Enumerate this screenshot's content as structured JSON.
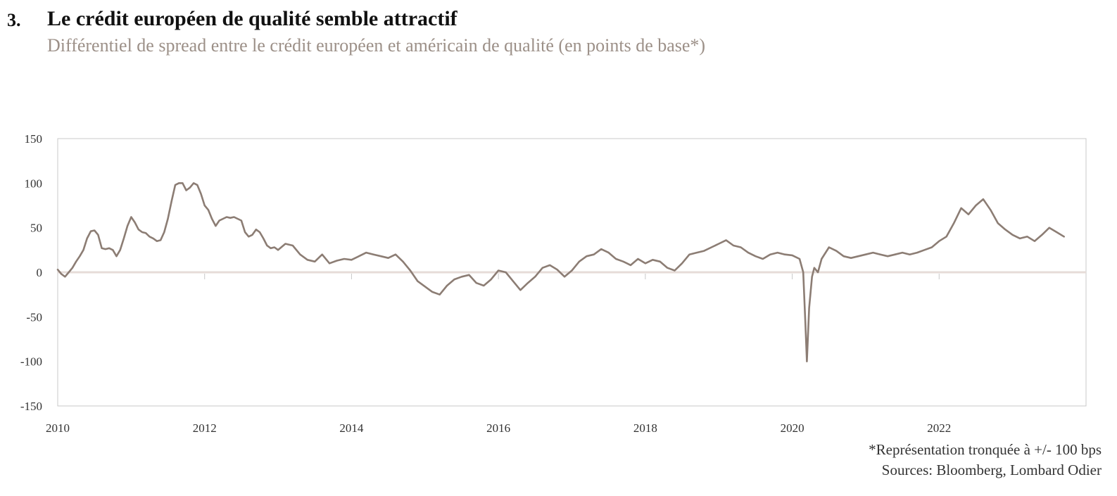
{
  "header": {
    "number": "3.",
    "title": "Le crédit européen de qualité semble attractif",
    "subtitle": "Différentiel de spread entre le crédit européen et américain de qualité (en points de base*)"
  },
  "footer": {
    "note": "*Représentation tronquée à +/- 100 bps",
    "sources": "Sources: Bloomberg, Lombard Odier"
  },
  "colors": {
    "series": "#8c7d74",
    "zero_line": "#e6dcd8",
    "frame": "#c8c8c8",
    "tick": "#c8c8c8"
  },
  "chart_data": {
    "type": "line",
    "title": "Le crédit européen de qualité semble attractif",
    "subtitle": "Différentiel de spread entre le crédit européen et américain de qualité (en points de base*)",
    "xlabel": "",
    "ylabel": "",
    "xlim": [
      2010.0,
      2024.0
    ],
    "ylim": [
      -150,
      150
    ],
    "y_ticks": [
      150,
      100,
      50,
      0,
      -50,
      -100,
      -150
    ],
    "y_tick_labels": [
      "150",
      "100",
      "50",
      "0",
      "-50",
      "-100",
      "-150"
    ],
    "x_ticks": [
      2010,
      2012,
      2014,
      2016,
      2018,
      2020,
      2022
    ],
    "x_tick_labels": [
      "2010",
      "2012",
      "2014",
      "2016",
      "2018",
      "2020",
      "2022"
    ],
    "grid": false,
    "legend": "none",
    "series": [
      {
        "x": [
          2010.0,
          2010.05,
          2010.1,
          2010.15,
          2010.2,
          2010.25,
          2010.3,
          2010.35,
          2010.4,
          2010.45,
          2010.5,
          2010.55,
          2010.6,
          2010.65,
          2010.7,
          2010.75,
          2010.8,
          2010.85,
          2010.9,
          2010.95,
          2011.0,
          2011.05,
          2011.1,
          2011.15,
          2011.2,
          2011.25,
          2011.3,
          2011.35,
          2011.4,
          2011.45,
          2011.5,
          2011.55,
          2011.6,
          2011.65,
          2011.7,
          2011.75,
          2011.8,
          2011.85,
          2011.9,
          2011.95,
          2012.0,
          2012.05,
          2012.1,
          2012.15,
          2012.2,
          2012.25,
          2012.3,
          2012.35,
          2012.4,
          2012.45,
          2012.5,
          2012.55,
          2012.6,
          2012.65,
          2012.7,
          2012.75,
          2012.8,
          2012.85,
          2012.9,
          2012.95,
          2013.0,
          2013.1,
          2013.2,
          2013.3,
          2013.4,
          2013.5,
          2013.6,
          2013.7,
          2013.8,
          2013.9,
          2014.0,
          2014.1,
          2014.2,
          2014.3,
          2014.4,
          2014.5,
          2014.6,
          2014.7,
          2014.8,
          2014.9,
          2015.0,
          2015.1,
          2015.2,
          2015.3,
          2015.4,
          2015.5,
          2015.6,
          2015.7,
          2015.8,
          2015.9,
          2016.0,
          2016.1,
          2016.2,
          2016.3,
          2016.4,
          2016.5,
          2016.6,
          2016.7,
          2016.8,
          2016.9,
          2017.0,
          2017.1,
          2017.2,
          2017.3,
          2017.4,
          2017.5,
          2017.6,
          2017.7,
          2017.8,
          2017.9,
          2018.0,
          2018.1,
          2018.2,
          2018.3,
          2018.4,
          2018.5,
          2018.6,
          2018.7,
          2018.8,
          2018.9,
          2019.0,
          2019.1,
          2019.2,
          2019.3,
          2019.4,
          2019.5,
          2019.6,
          2019.7,
          2019.8,
          2019.9,
          2020.0,
          2020.1,
          2020.15,
          2020.18,
          2020.2,
          2020.23,
          2020.27,
          2020.3,
          2020.35,
          2020.4,
          2020.5,
          2020.6,
          2020.7,
          2020.8,
          2020.9,
          2021.0,
          2021.1,
          2021.2,
          2021.3,
          2021.4,
          2021.5,
          2021.6,
          2021.7,
          2021.8,
          2021.9,
          2022.0,
          2022.1,
          2022.2,
          2022.3,
          2022.4,
          2022.5,
          2022.6,
          2022.7,
          2022.8,
          2022.9,
          2023.0,
          2023.1,
          2023.2,
          2023.3,
          2023.4,
          2023.5,
          2023.6,
          2023.7
        ],
        "y": [
          3,
          -2,
          -5,
          0,
          5,
          12,
          18,
          25,
          38,
          46,
          47,
          42,
          27,
          26,
          27,
          25,
          18,
          25,
          38,
          52,
          62,
          56,
          48,
          45,
          44,
          40,
          38,
          35,
          36,
          45,
          60,
          80,
          98,
          100,
          100,
          92,
          95,
          100,
          98,
          88,
          75,
          70,
          60,
          52,
          58,
          60,
          62,
          61,
          62,
          60,
          58,
          45,
          40,
          42,
          48,
          45,
          38,
          30,
          27,
          28,
          25,
          32,
          30,
          20,
          14,
          12,
          20,
          10,
          13,
          15,
          14,
          18,
          22,
          20,
          18,
          16,
          20,
          12,
          2,
          -10,
          -16,
          -22,
          -25,
          -15,
          -8,
          -5,
          -3,
          -12,
          -15,
          -8,
          2,
          0,
          -10,
          -20,
          -12,
          -5,
          5,
          8,
          3,
          -5,
          2,
          12,
          18,
          20,
          26,
          22,
          15,
          12,
          8,
          15,
          10,
          14,
          12,
          5,
          2,
          10,
          20,
          22,
          24,
          28,
          32,
          36,
          30,
          28,
          22,
          18,
          15,
          20,
          22,
          20,
          19,
          15,
          0,
          -60,
          -100,
          -40,
          -5,
          5,
          0,
          15,
          28,
          24,
          18,
          16,
          18,
          20,
          22,
          20,
          18,
          20,
          22,
          20,
          22,
          25,
          28,
          35,
          40,
          55,
          72,
          65,
          75,
          82,
          70,
          55,
          48,
          42,
          38,
          40,
          35,
          42,
          50,
          45,
          40
        ]
      }
    ]
  }
}
